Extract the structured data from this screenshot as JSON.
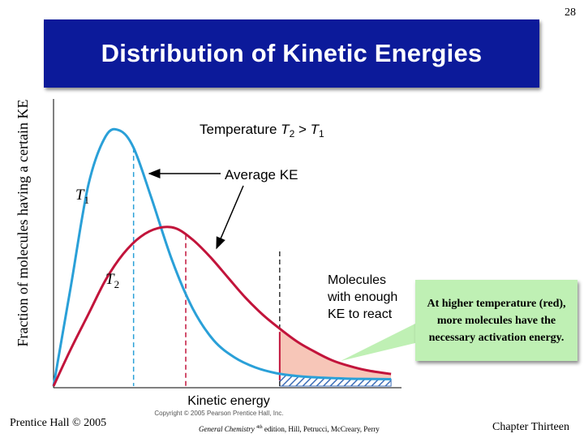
{
  "slide": {
    "page_number": "28",
    "title": "Distribution of Kinetic Energies",
    "callout": "At higher temperature (red), more molecules have the necessary activation energy.",
    "footer_left": "Prentice Hall © 2005",
    "footer_middle_italic": "General Chemistry",
    "footer_middle_sup": "4th",
    "footer_middle_rest": " edition, Hill, Petrucci, McCreary, Perry",
    "footer_right": "Chapter Thirteen"
  },
  "colors": {
    "title_band": "#0c1a9a",
    "t1_curve": "#2aa0d8",
    "t2_curve": "#c2143b",
    "callout_bg": "#bff0b4",
    "shade_t2": "#f7c6b8",
    "shade_t1": "#3f6fb8"
  },
  "chart_data": {
    "type": "line",
    "title": "",
    "xlabel": "Kinetic energy",
    "ylabel": "Fraction of molecules having a certain KE",
    "xlim": [
      0,
      10
    ],
    "ylim": [
      0,
      10
    ],
    "grid": false,
    "legend": "none",
    "series": [
      {
        "name": "T1",
        "x": [
          0,
          0.5,
          1.0,
          1.5,
          1.9,
          2.3,
          2.8,
          3.4,
          4.0,
          4.6,
          5.2,
          5.8,
          6.4,
          7.0,
          7.6,
          8.2,
          8.8,
          9.7
        ],
        "y": [
          0.0,
          3.5,
          7.0,
          8.7,
          8.9,
          8.3,
          6.6,
          4.4,
          2.7,
          1.6,
          1.0,
          0.65,
          0.45,
          0.35,
          0.3,
          0.27,
          0.25,
          0.24
        ]
      },
      {
        "name": "T2",
        "x": [
          0,
          0.5,
          1.0,
          1.5,
          2.0,
          2.5,
          3.0,
          3.5,
          4.0,
          4.5,
          5.0,
          5.5,
          6.0,
          6.5,
          7.0,
          7.5,
          8.0,
          8.5,
          9.0,
          9.7
        ],
        "y": [
          0.0,
          1.3,
          2.5,
          3.7,
          4.6,
          5.2,
          5.5,
          5.5,
          5.1,
          4.5,
          3.8,
          3.1,
          2.5,
          2.0,
          1.55,
          1.2,
          0.9,
          0.7,
          0.55,
          0.42
        ]
      }
    ],
    "annotations": {
      "temperature_label_prefix": "Temperature ",
      "temperature_label_t2": "T",
      "temperature_label_sub2": "2",
      "temperature_label_gt": " > ",
      "temperature_label_t1": "T",
      "temperature_label_sub1": "1",
      "average_ke": "Average KE",
      "t1_label": "T",
      "t1_sub": "1",
      "t2_label": "T",
      "t2_sub": "2",
      "molecules_line1": "Molecules",
      "molecules_line2": "with enough",
      "molecules_line3": "KE to react",
      "copyright": "Copyright © 2005 Pearson Prentice Hall, Inc.",
      "average_ke_t1_x": 2.3,
      "average_ke_t2_x": 3.8,
      "activation_energy_x": 6.5
    }
  }
}
